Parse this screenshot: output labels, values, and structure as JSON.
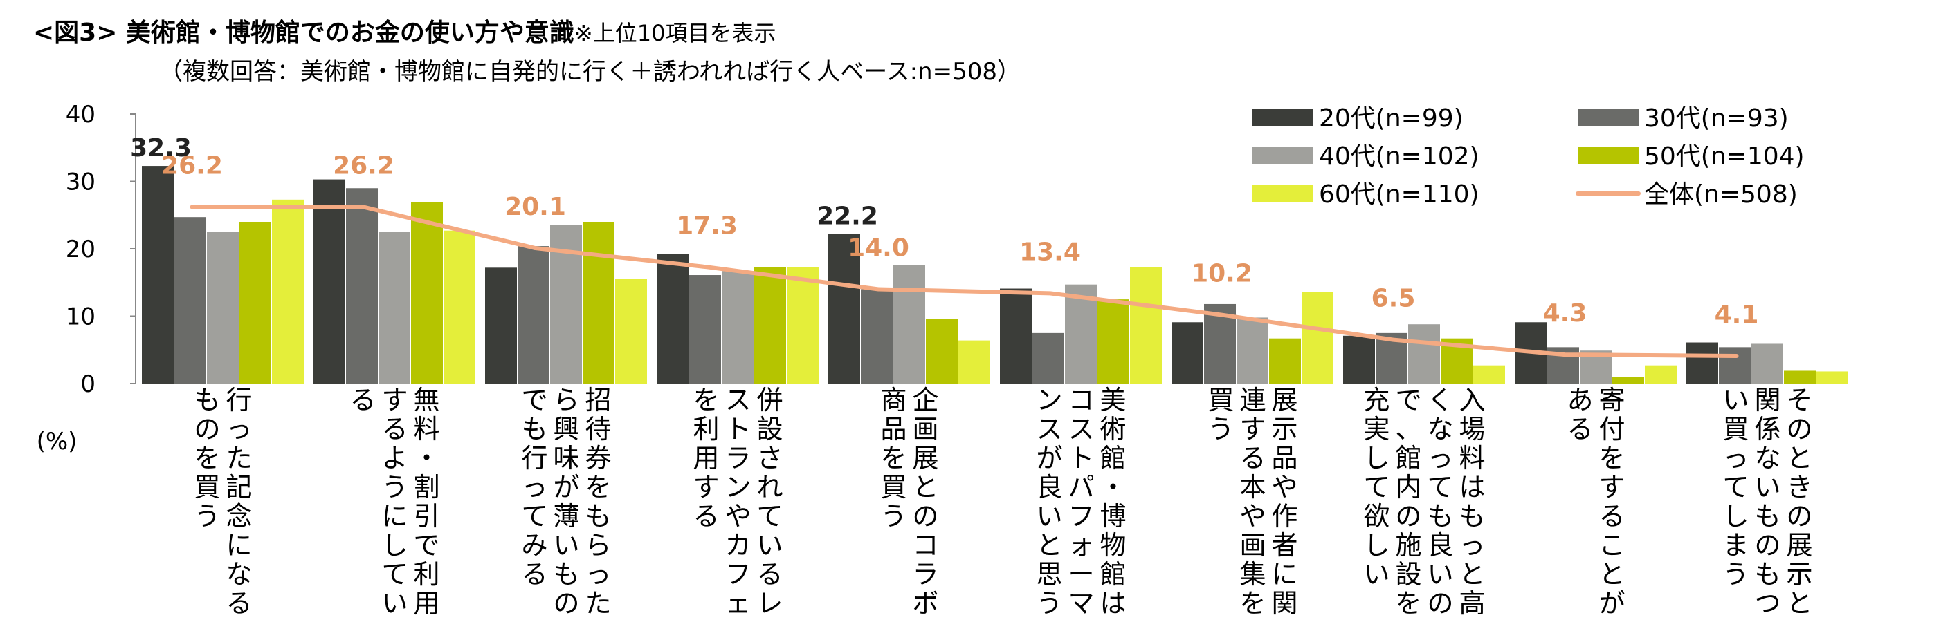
{
  "title": {
    "main": "<図3> 美術館・博物館でのお金の使い方や意識",
    "note": "※上位10項目を表示"
  },
  "subtitle": "（複数回答：美術館・博物館に自発的に行く＋誘われれば行く人ベース:n=508）",
  "colors": {
    "20s": "#3b3d39",
    "30s": "#6a6b68",
    "40s": "#a0a09c",
    "50s": "#b5c400",
    "60s": "#e4ee3a",
    "all": "#f4aa82",
    "label_dark": "#222222",
    "label_orange": "#e2935f"
  },
  "chart_data": {
    "type": "bar",
    "ylabel": "(%)",
    "ylim": [
      0,
      40
    ],
    "yticks": [
      0,
      10,
      20,
      30,
      40
    ],
    "grid": false,
    "legend_position": "top-right",
    "categories": [
      "行った記念になるものを買う",
      "無料・割引で利用するようにしている",
      "招待券をもらったら興味が薄いものでも行ってみる",
      "併設されているレストランやカフェを利用する",
      "企画展とのコラボ商品を買う",
      "美術館・博物館はコストパフォーマンスが良いと思う",
      "展示品や作者に関連する本や画集を買う",
      "入場料はもっと高くなっても良いので、館内の施設を充実して欲しい",
      "寄付をすることがある",
      "そのときの展示と関係ないものもつい買ってしまう"
    ],
    "series": [
      {
        "name": "20代(n=99)",
        "color_key": "20s",
        "values": [
          32.3,
          30.3,
          17.2,
          19.2,
          22.2,
          14.1,
          9.1,
          7.1,
          9.1,
          6.1
        ]
      },
      {
        "name": "30代(n=93)",
        "color_key": "30s",
        "values": [
          24.7,
          29.0,
          20.4,
          16.1,
          14.0,
          7.5,
          11.8,
          7.5,
          5.4,
          5.4
        ]
      },
      {
        "name": "40代(n=102)",
        "color_key": "40s",
        "values": [
          22.5,
          22.5,
          23.5,
          16.7,
          17.6,
          14.7,
          9.8,
          8.8,
          4.9,
          5.9
        ]
      },
      {
        "name": "50代(n=104)",
        "color_key": "50s",
        "values": [
          24.0,
          26.9,
          24.0,
          17.3,
          9.6,
          12.5,
          6.7,
          6.7,
          1.0,
          1.9
        ]
      },
      {
        "name": "60代(n=110)",
        "color_key": "60s",
        "values": [
          27.3,
          22.7,
          15.5,
          17.3,
          6.4,
          17.3,
          13.6,
          2.7,
          2.7,
          1.8
        ]
      }
    ],
    "line": {
      "name": "全体(n=508)",
      "color_key": "all",
      "values": [
        26.2,
        26.2,
        20.1,
        17.3,
        14.0,
        13.4,
        10.2,
        6.5,
        4.3,
        4.1
      ]
    },
    "value_labels": [
      {
        "series": "20代(n=99)",
        "category_index": 0,
        "text": "32.3"
      },
      {
        "series": "20代(n=99)",
        "category_index": 4,
        "text": "22.2"
      }
    ]
  }
}
